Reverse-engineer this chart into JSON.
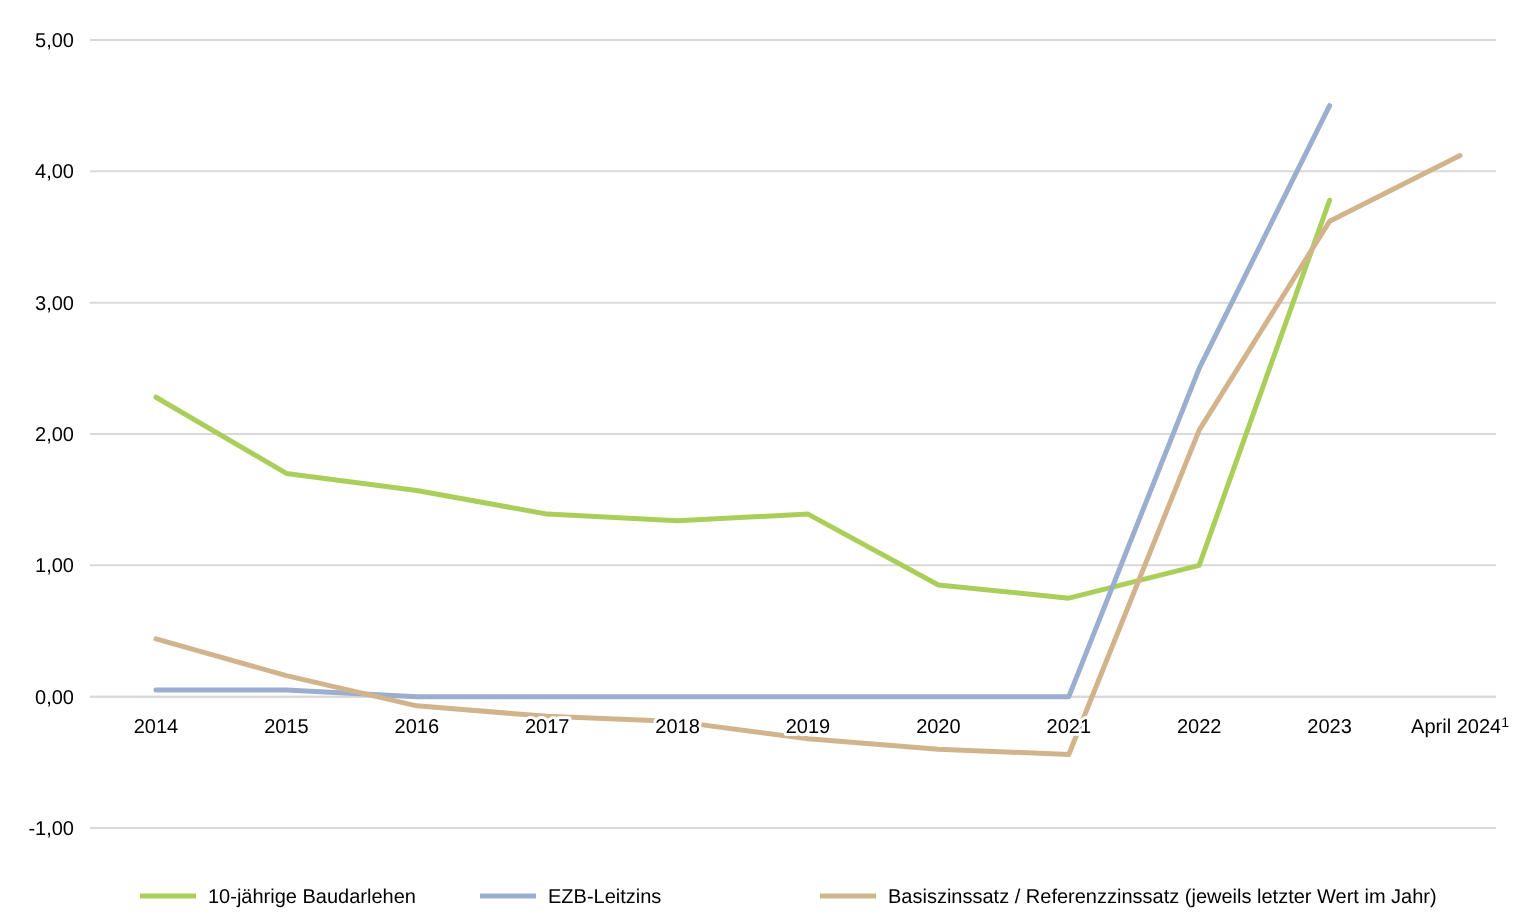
{
  "chart_data": {
    "type": "line",
    "categories": [
      "2014",
      "2015",
      "2016",
      "2017",
      "2018",
      "2019",
      "2020",
      "2021",
      "2022",
      "2023",
      "April 2024$^{1}$"
    ],
    "series": [
      {
        "name": "10-jährige Baudarlehen",
        "color": "#a9cf5a",
        "values": [
          2.28,
          1.7,
          1.57,
          1.39,
          1.34,
          1.39,
          0.85,
          0.75,
          1.0,
          3.78,
          null
        ]
      },
      {
        "name": "EZB-Leitzins",
        "color": "#9aaed0",
        "values": [
          0.05,
          0.05,
          0,
          0,
          0,
          0,
          0,
          0,
          2.5,
          4.5,
          null
        ]
      },
      {
        "name": "Basiszinssatz / Referenzzinssatz (jeweils letzter Wert im Jahr)",
        "color": "#d2b48c",
        "values": [
          0.44,
          0.16,
          -0.07,
          -0.15,
          -0.19,
          -0.32,
          -0.4,
          -0.44,
          2.03,
          3.62,
          4.12
        ]
      }
    ],
    "ylim": [
      -1,
      5
    ],
    "yticks": [
      {
        "value": -1,
        "label": "-1,00"
      },
      {
        "value": 0,
        "label": "0,00"
      },
      {
        "value": 1,
        "label": "1,00"
      },
      {
        "value": 2,
        "label": "2,00"
      },
      {
        "value": 3,
        "label": "3,00"
      },
      {
        "value": 4,
        "label": "4,00"
      },
      {
        "value": 5,
        "label": "5,00"
      }
    ],
    "grid": "y",
    "legend": "bottom",
    "marker": "none",
    "line_style": "solid"
  }
}
